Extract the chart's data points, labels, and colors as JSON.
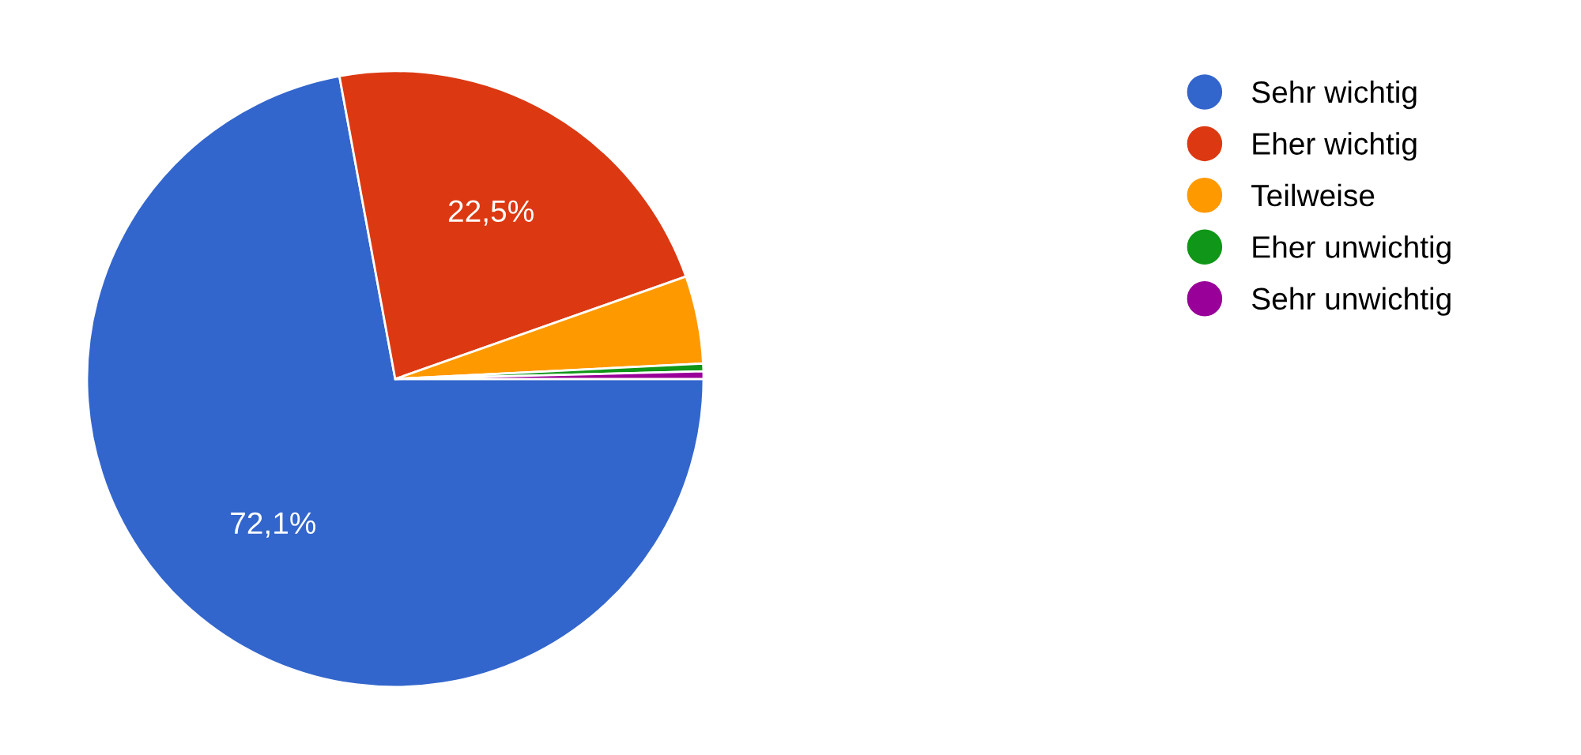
{
  "chart_data": {
    "type": "pie",
    "categories": [
      "Sehr wichtig",
      "Eher wichtig",
      "Teilweise",
      "Eher unwichtig",
      "Sehr unwichtig"
    ],
    "values": [
      72.1,
      22.5,
      4.6,
      0.4,
      0.4
    ],
    "colors": [
      "#3366cc",
      "#dc3912",
      "#ff9900",
      "#109618",
      "#990099"
    ],
    "value_labels": [
      "72,1%",
      "22,5%",
      null,
      null,
      null
    ],
    "legend": "right"
  }
}
